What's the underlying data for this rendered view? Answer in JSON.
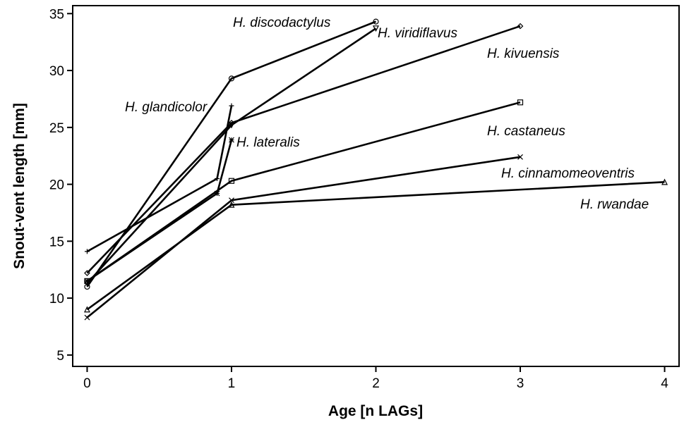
{
  "chart_data": {
    "type": "line",
    "x_label": "Age [n LAGs]",
    "y_label": "Snout-vent length [mm]",
    "xlim": [
      -0.1,
      4.1
    ],
    "xticks": [
      0,
      1,
      2,
      3,
      4
    ],
    "ylim": [
      4,
      35.7
    ],
    "yticks": [
      5,
      10,
      15,
      20,
      25,
      30,
      35
    ],
    "grid": false,
    "series": [
      {
        "name": "H. discodactylus",
        "color": "#000000",
        "marker": "circle",
        "x": [
          0,
          1,
          2
        ],
        "values": [
          11.0,
          29.3,
          34.3
        ]
      },
      {
        "name": "H. viridiflavus",
        "color": "#000000",
        "marker": "triangle-down",
        "x": [
          0,
          1,
          2
        ],
        "values": [
          11.3,
          25.2,
          33.7
        ]
      },
      {
        "name": "H. kivuensis",
        "color": "#000000",
        "marker": "diamond",
        "x": [
          0,
          1,
          3
        ],
        "values": [
          12.2,
          25.4,
          33.9
        ]
      },
      {
        "name": "H. glandicolor",
        "color": "#000000",
        "marker": "plus",
        "x": [
          0,
          0.9,
          1
        ],
        "values": [
          14.1,
          20.5,
          26.9
        ]
      },
      {
        "name": "H. lateralis",
        "color": "#000000",
        "marker": "star",
        "x": [
          0,
          0.9,
          1
        ],
        "values": [
          11.5,
          19.2,
          23.9
        ]
      },
      {
        "name": "H. castaneus",
        "color": "#000000",
        "marker": "square",
        "x": [
          0,
          1,
          3
        ],
        "values": [
          11.5,
          20.3,
          27.2
        ]
      },
      {
        "name": "H. cinnamomeoventris",
        "color": "#000000",
        "marker": "x",
        "x": [
          0,
          1,
          3
        ],
        "values": [
          8.3,
          18.6,
          22.4
        ]
      },
      {
        "name": "H. rwandae",
        "color": "#000000",
        "marker": "triangle",
        "x": [
          0,
          1,
          4
        ],
        "values": [
          9.0,
          18.2,
          20.2
        ]
      }
    ]
  }
}
